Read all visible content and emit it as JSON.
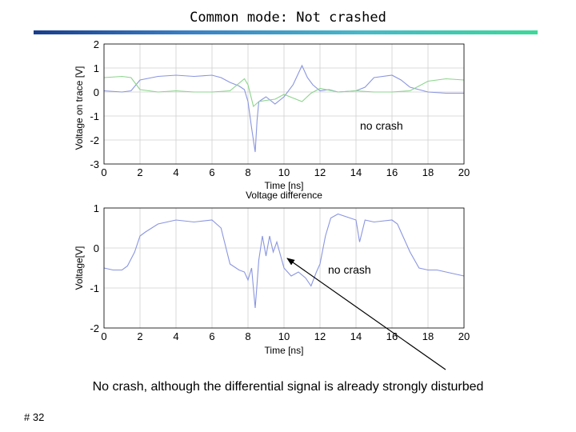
{
  "slide": {
    "title": "Common mode:  Not crashed",
    "caption": "No crash, although the differential signal is already strongly disturbed",
    "page_number": "# 32"
  },
  "colors": {
    "title_rule": [
      "#1a3e8c",
      "#3dd89a"
    ],
    "series_blue": "#8a96e0",
    "series_green": "#8cd48c",
    "grid": "#cfcfcf",
    "arrow": "#000000"
  },
  "chart_data": [
    {
      "type": "line",
      "title": "",
      "xlabel": "Time [ns]",
      "ylabel": "Voltage on trace [V]",
      "xlim": [
        0,
        20
      ],
      "ylim": [
        -3,
        2
      ],
      "xticks": [
        0,
        2,
        4,
        6,
        8,
        10,
        12,
        14,
        16,
        18,
        20
      ],
      "yticks": [
        2,
        1,
        0,
        -1,
        -2,
        -3
      ],
      "grid": true,
      "annotation": "no crash",
      "series": [
        {
          "color": "#8a96e0",
          "x": [
            0,
            1,
            1.5,
            2,
            3,
            4,
            5,
            6,
            6.5,
            7,
            7.5,
            7.8,
            8,
            8.2,
            8.4,
            8.5,
            8.6,
            8.8,
            9,
            9.5,
            10,
            10.5,
            11,
            11.3,
            11.6,
            12,
            12.5,
            13,
            14,
            14.5,
            15,
            16,
            16.5,
            17,
            18,
            19,
            20
          ],
          "y": [
            0.05,
            0.0,
            0.05,
            0.5,
            0.65,
            0.7,
            0.65,
            0.7,
            0.6,
            0.4,
            0.25,
            0.1,
            -0.4,
            -1.5,
            -2.5,
            -1.2,
            -0.4,
            -0.3,
            -0.2,
            -0.5,
            -0.2,
            0.3,
            1.1,
            0.6,
            0.3,
            0.05,
            0.1,
            0.0,
            0.05,
            0.2,
            0.6,
            0.7,
            0.5,
            0.2,
            0.0,
            -0.05,
            -0.05
          ]
        },
        {
          "color": "#8cd48c",
          "x": [
            0,
            1,
            1.5,
            2,
            3,
            4,
            5,
            6,
            7,
            7.8,
            8,
            8.3,
            8.6,
            9,
            9.5,
            10,
            11,
            11.5,
            12,
            13,
            14,
            15,
            16,
            17,
            18,
            19,
            20
          ],
          "y": [
            0.6,
            0.65,
            0.6,
            0.1,
            0.0,
            0.05,
            0.0,
            0.0,
            0.05,
            0.55,
            0.3,
            -0.6,
            -0.4,
            -0.35,
            -0.3,
            -0.1,
            -0.4,
            -0.05,
            0.15,
            0.0,
            0.05,
            0.0,
            0.0,
            0.05,
            0.45,
            0.55,
            0.5
          ]
        }
      ]
    },
    {
      "type": "line",
      "title": "Voltage difference",
      "xlabel": "Time [ns]",
      "ylabel": "Voltage[V]",
      "xlim": [
        0,
        20
      ],
      "ylim": [
        -2,
        1
      ],
      "xticks": [
        0,
        2,
        4,
        6,
        8,
        10,
        12,
        14,
        16,
        18,
        20
      ],
      "yticks": [
        1,
        0,
        -1,
        -2
      ],
      "grid": true,
      "annotation": "no crash",
      "series": [
        {
          "color": "#8a96e0",
          "x": [
            0,
            0.5,
            1,
            1.3,
            1.7,
            2,
            2.3,
            3,
            4,
            5,
            6,
            6.5,
            7,
            7.5,
            7.8,
            8,
            8.2,
            8.4,
            8.5,
            8.6,
            8.8,
            9,
            9.2,
            9.4,
            9.6,
            10,
            10.4,
            10.8,
            11.2,
            11.5,
            11.8,
            12,
            12.3,
            12.6,
            13,
            14,
            14.2,
            14.5,
            15,
            16,
            16.3,
            16.6,
            17,
            17.5,
            18,
            18.5,
            19,
            19.5,
            20
          ],
          "y": [
            -0.5,
            -0.55,
            -0.55,
            -0.45,
            -0.1,
            0.3,
            0.4,
            0.6,
            0.7,
            0.65,
            0.7,
            0.5,
            -0.4,
            -0.55,
            -0.6,
            -0.8,
            -0.5,
            -1.5,
            -0.9,
            -0.3,
            0.3,
            -0.2,
            0.3,
            -0.1,
            0.15,
            -0.5,
            -0.7,
            -0.6,
            -0.75,
            -0.95,
            -0.6,
            -0.4,
            0.3,
            0.75,
            0.85,
            0.7,
            0.15,
            0.7,
            0.65,
            0.7,
            0.6,
            0.3,
            -0.1,
            -0.5,
            -0.55,
            -0.55,
            -0.6,
            -0.65,
            -0.7
          ]
        }
      ]
    }
  ]
}
